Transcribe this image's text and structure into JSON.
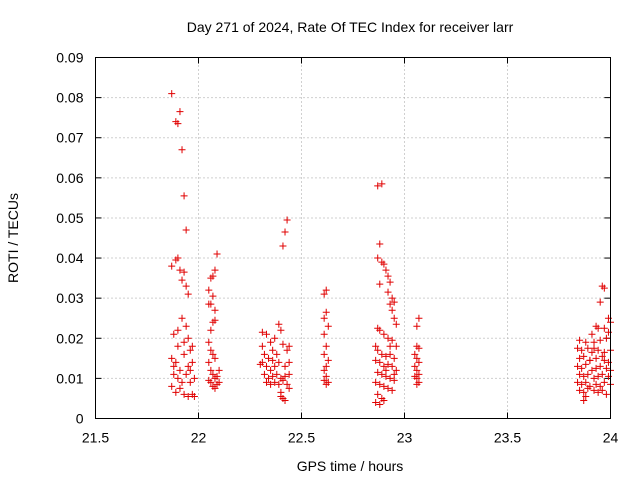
{
  "chart_data": {
    "type": "scatter",
    "title": "Day 271 of 2024, Rate Of TEC Index for receiver larr",
    "xlabel": "GPS time / hours",
    "ylabel": "ROTI / TECUs",
    "xlim": [
      21.5,
      24
    ],
    "ylim": [
      0,
      0.09
    ],
    "x_ticks": [
      21.5,
      22,
      22.5,
      23,
      23.5,
      24
    ],
    "x_tick_labels": [
      "21.5",
      "22",
      "22.5",
      "23",
      "23.5",
      "24"
    ],
    "y_ticks": [
      0,
      0.01,
      0.02,
      0.03,
      0.04,
      0.05,
      0.06,
      0.07,
      0.08,
      0.09
    ],
    "y_tick_labels": [
      "0",
      "0.01",
      "0.02",
      "0.03",
      "0.04",
      "0.05",
      "0.06",
      "0.07",
      "0.08",
      "0.09"
    ],
    "grid": true,
    "marker": "plus",
    "series": [
      {
        "name": "ROTI",
        "color": "#e00000",
        "points": [
          [
            21.87,
            0.081
          ],
          [
            21.89,
            0.074
          ],
          [
            21.9,
            0.0735
          ],
          [
            21.91,
            0.0765
          ],
          [
            21.92,
            0.067
          ],
          [
            21.93,
            0.0555
          ],
          [
            21.94,
            0.047
          ],
          [
            21.89,
            0.0395
          ],
          [
            21.9,
            0.04
          ],
          [
            21.87,
            0.038
          ],
          [
            21.91,
            0.037
          ],
          [
            21.93,
            0.0365
          ],
          [
            21.92,
            0.0345
          ],
          [
            21.94,
            0.033
          ],
          [
            21.95,
            0.031
          ],
          [
            21.88,
            0.021
          ],
          [
            21.92,
            0.025
          ],
          [
            21.94,
            0.023
          ],
          [
            21.9,
            0.018
          ],
          [
            21.95,
            0.02
          ],
          [
            21.96,
            0.017
          ],
          [
            21.87,
            0.015
          ],
          [
            21.89,
            0.014
          ],
          [
            21.91,
            0.012
          ],
          [
            21.93,
            0.016
          ],
          [
            21.95,
            0.013
          ],
          [
            21.97,
            0.018
          ],
          [
            21.88,
            0.011
          ],
          [
            21.9,
            0.01
          ],
          [
            21.92,
            0.009
          ],
          [
            21.94,
            0.011
          ],
          [
            21.96,
            0.012
          ],
          [
            21.98,
            0.01
          ],
          [
            21.87,
            0.008
          ],
          [
            21.89,
            0.0065
          ],
          [
            21.91,
            0.0075
          ],
          [
            21.93,
            0.006
          ],
          [
            21.95,
            0.0055
          ],
          [
            21.97,
            0.006
          ],
          [
            21.98,
            0.0055
          ],
          [
            21.96,
            0.009
          ],
          [
            21.88,
            0.013
          ],
          [
            21.97,
            0.014
          ],
          [
            21.9,
            0.022
          ],
          [
            21.93,
            0.019
          ],
          [
            22.09,
            0.041
          ],
          [
            22.08,
            0.037
          ],
          [
            22.07,
            0.0355
          ],
          [
            22.06,
            0.035
          ],
          [
            22.05,
            0.032
          ],
          [
            22.07,
            0.0305
          ],
          [
            22.06,
            0.0285
          ],
          [
            22.08,
            0.027
          ],
          [
            22.05,
            0.0285
          ],
          [
            22.07,
            0.024
          ],
          [
            22.06,
            0.022
          ],
          [
            22.08,
            0.0245
          ],
          [
            22.05,
            0.019
          ],
          [
            22.06,
            0.017
          ],
          [
            22.07,
            0.016
          ],
          [
            22.08,
            0.015
          ],
          [
            22.05,
            0.014
          ],
          [
            22.06,
            0.012
          ],
          [
            22.07,
            0.011
          ],
          [
            22.08,
            0.01
          ],
          [
            22.05,
            0.0095
          ],
          [
            22.06,
            0.009
          ],
          [
            22.07,
            0.008
          ],
          [
            22.08,
            0.0075
          ],
          [
            22.09,
            0.0085
          ],
          [
            22.1,
            0.009
          ],
          [
            22.09,
            0.0105
          ],
          [
            22.1,
            0.012
          ],
          [
            22.43,
            0.0495
          ],
          [
            22.42,
            0.0465
          ],
          [
            22.41,
            0.043
          ],
          [
            22.31,
            0.0215
          ],
          [
            22.33,
            0.021
          ],
          [
            22.35,
            0.019
          ],
          [
            22.39,
            0.0235
          ],
          [
            22.4,
            0.022
          ],
          [
            22.37,
            0.02
          ],
          [
            22.31,
            0.018
          ],
          [
            22.32,
            0.016
          ],
          [
            22.34,
            0.015
          ],
          [
            22.36,
            0.017
          ],
          [
            22.38,
            0.016
          ],
          [
            22.41,
            0.0185
          ],
          [
            22.43,
            0.017
          ],
          [
            22.44,
            0.018
          ],
          [
            22.31,
            0.014
          ],
          [
            22.33,
            0.013
          ],
          [
            22.35,
            0.012
          ],
          [
            22.37,
            0.013
          ],
          [
            22.39,
            0.014
          ],
          [
            22.42,
            0.013
          ],
          [
            22.44,
            0.014
          ],
          [
            22.32,
            0.011
          ],
          [
            22.34,
            0.01
          ],
          [
            22.36,
            0.0105
          ],
          [
            22.38,
            0.011
          ],
          [
            22.4,
            0.01
          ],
          [
            22.42,
            0.0105
          ],
          [
            22.44,
            0.011
          ],
          [
            22.33,
            0.009
          ],
          [
            22.35,
            0.0085
          ],
          [
            22.37,
            0.009
          ],
          [
            22.39,
            0.0085
          ],
          [
            22.41,
            0.0095
          ],
          [
            22.43,
            0.0085
          ],
          [
            22.4,
            0.0065
          ],
          [
            22.41,
            0.005
          ],
          [
            22.42,
            0.0045
          ],
          [
            22.4,
            0.0055
          ],
          [
            22.44,
            0.0075
          ],
          [
            22.3,
            0.0135
          ],
          [
            22.36,
            0.0145
          ],
          [
            22.62,
            0.032
          ],
          [
            22.61,
            0.031
          ],
          [
            22.62,
            0.0265
          ],
          [
            22.61,
            0.025
          ],
          [
            22.63,
            0.023
          ],
          [
            22.61,
            0.021
          ],
          [
            22.62,
            0.018
          ],
          [
            22.61,
            0.016
          ],
          [
            22.63,
            0.0145
          ],
          [
            22.62,
            0.013
          ],
          [
            22.61,
            0.012
          ],
          [
            22.62,
            0.0105
          ],
          [
            22.61,
            0.0095
          ],
          [
            22.63,
            0.009
          ],
          [
            22.62,
            0.0085
          ],
          [
            22.87,
            0.058
          ],
          [
            22.89,
            0.0585
          ],
          [
            22.88,
            0.0435
          ],
          [
            22.87,
            0.04
          ],
          [
            22.89,
            0.039
          ],
          [
            22.9,
            0.0385
          ],
          [
            22.91,
            0.037
          ],
          [
            22.92,
            0.0355
          ],
          [
            22.93,
            0.034
          ],
          [
            22.88,
            0.0335
          ],
          [
            22.92,
            0.0315
          ],
          [
            22.94,
            0.03
          ],
          [
            22.93,
            0.0285
          ],
          [
            22.95,
            0.029
          ],
          [
            22.94,
            0.027
          ],
          [
            22.95,
            0.025
          ],
          [
            22.96,
            0.0235
          ],
          [
            22.87,
            0.0225
          ],
          [
            22.88,
            0.022
          ],
          [
            22.9,
            0.021
          ],
          [
            22.92,
            0.02
          ],
          [
            22.94,
            0.0195
          ],
          [
            22.96,
            0.018
          ],
          [
            22.86,
            0.018
          ],
          [
            22.87,
            0.017
          ],
          [
            22.89,
            0.016
          ],
          [
            22.91,
            0.0155
          ],
          [
            22.93,
            0.016
          ],
          [
            22.95,
            0.015
          ],
          [
            22.86,
            0.0145
          ],
          [
            22.88,
            0.014
          ],
          [
            22.9,
            0.013
          ],
          [
            22.92,
            0.0135
          ],
          [
            22.94,
            0.013
          ],
          [
            22.96,
            0.012
          ],
          [
            22.87,
            0.0115
          ],
          [
            22.89,
            0.011
          ],
          [
            22.91,
            0.0105
          ],
          [
            22.93,
            0.01
          ],
          [
            22.95,
            0.0095
          ],
          [
            22.86,
            0.009
          ],
          [
            22.88,
            0.0085
          ],
          [
            22.9,
            0.008
          ],
          [
            22.92,
            0.0075
          ],
          [
            22.94,
            0.007
          ],
          [
            22.87,
            0.006
          ],
          [
            22.89,
            0.005
          ],
          [
            22.86,
            0.004
          ],
          [
            22.88,
            0.0035
          ],
          [
            22.9,
            0.0045
          ],
          [
            22.91,
            0.012
          ],
          [
            22.93,
            0.018
          ],
          [
            22.95,
            0.011
          ],
          [
            23.07,
            0.025
          ],
          [
            23.06,
            0.023
          ],
          [
            23.06,
            0.018
          ],
          [
            23.07,
            0.0175
          ],
          [
            23.05,
            0.016
          ],
          [
            23.06,
            0.015
          ],
          [
            23.07,
            0.014
          ],
          [
            23.05,
            0.013
          ],
          [
            23.06,
            0.012
          ],
          [
            23.07,
            0.011
          ],
          [
            23.05,
            0.0105
          ],
          [
            23.06,
            0.01
          ],
          [
            23.07,
            0.009
          ],
          [
            23.06,
            0.0085
          ],
          [
            23.96,
            0.033
          ],
          [
            23.97,
            0.0325
          ],
          [
            23.95,
            0.029
          ],
          [
            23.99,
            0.025
          ],
          [
            24.0,
            0.024
          ],
          [
            23.93,
            0.023
          ],
          [
            23.94,
            0.0225
          ],
          [
            23.97,
            0.0225
          ],
          [
            23.91,
            0.021
          ],
          [
            23.99,
            0.0215
          ],
          [
            23.85,
            0.0195
          ],
          [
            23.88,
            0.019
          ],
          [
            23.92,
            0.019
          ],
          [
            23.95,
            0.0195
          ],
          [
            23.98,
            0.02
          ],
          [
            23.84,
            0.0175
          ],
          [
            23.86,
            0.017
          ],
          [
            23.89,
            0.0175
          ],
          [
            23.91,
            0.0165
          ],
          [
            23.94,
            0.017
          ],
          [
            23.97,
            0.0165
          ],
          [
            24.0,
            0.017
          ],
          [
            23.85,
            0.015
          ],
          [
            23.87,
            0.0155
          ],
          [
            23.9,
            0.0145
          ],
          [
            23.93,
            0.015
          ],
          [
            23.96,
            0.0155
          ],
          [
            23.99,
            0.014
          ],
          [
            23.84,
            0.013
          ],
          [
            23.86,
            0.0125
          ],
          [
            23.88,
            0.0135
          ],
          [
            23.91,
            0.012
          ],
          [
            23.93,
            0.0125
          ],
          [
            23.95,
            0.013
          ],
          [
            23.98,
            0.0125
          ],
          [
            24.0,
            0.012
          ],
          [
            23.85,
            0.011
          ],
          [
            23.87,
            0.0105
          ],
          [
            23.89,
            0.011
          ],
          [
            23.92,
            0.01
          ],
          [
            23.94,
            0.0105
          ],
          [
            23.96,
            0.011
          ],
          [
            23.99,
            0.0105
          ],
          [
            23.84,
            0.009
          ],
          [
            23.86,
            0.0085
          ],
          [
            23.88,
            0.009
          ],
          [
            23.9,
            0.008
          ],
          [
            23.93,
            0.0085
          ],
          [
            23.95,
            0.008
          ],
          [
            23.97,
            0.009
          ],
          [
            24.0,
            0.0085
          ],
          [
            23.85,
            0.007
          ],
          [
            23.87,
            0.0065
          ],
          [
            23.89,
            0.0075
          ],
          [
            23.92,
            0.007
          ],
          [
            23.94,
            0.0065
          ],
          [
            23.96,
            0.007
          ],
          [
            23.98,
            0.006
          ],
          [
            23.87,
            0.0045
          ],
          [
            23.88,
            0.0055
          ],
          [
            23.9,
            0.0145
          ],
          [
            23.92,
            0.0175
          ],
          [
            23.97,
            0.0145
          ]
        ]
      }
    ]
  }
}
